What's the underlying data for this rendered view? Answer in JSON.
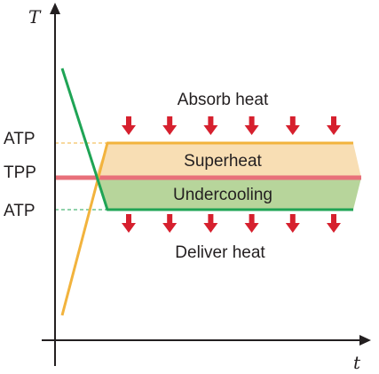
{
  "axes": {
    "y_label": "T",
    "x_label": "t"
  },
  "levels": {
    "upper": "ATP",
    "middle": "TPP",
    "lower": "ATP"
  },
  "bands": {
    "superheat": "Superheat",
    "undercooling": "Undercooling"
  },
  "flows": {
    "absorb": "Absorb heat",
    "deliver": "Deliver heat",
    "arrows_per_row": 6
  },
  "colors": {
    "axis": "#231f20",
    "superheat_fill": "#f8deb4",
    "superheat_line": "#f2b33d",
    "undercooling_fill": "#b7d59b",
    "undercooling_line": "#1fa455",
    "tpp_line": "#e8707a",
    "arrow": "#d6202e",
    "dashed_upper": "#f2b33d",
    "dashed_lower": "#1fa455"
  }
}
